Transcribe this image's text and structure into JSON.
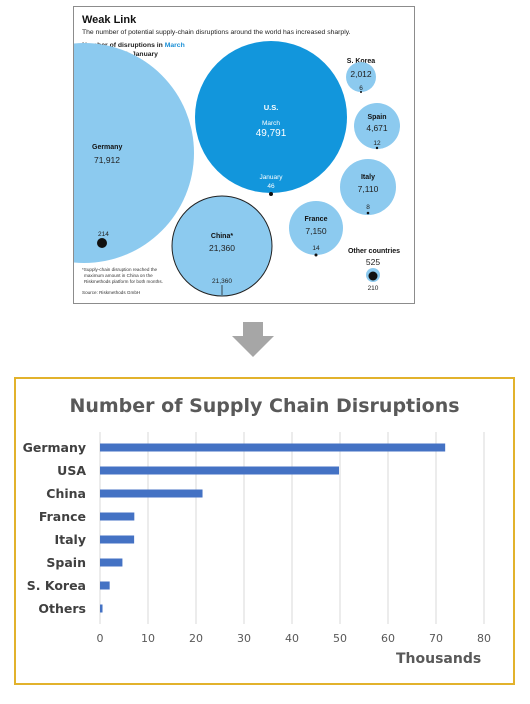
{
  "source_graphic": {
    "title": "Weak Link",
    "subtitle": "The number of potential supply-chain disruptions around the world has increased sharply.",
    "header_line1_prefix": "Number of disruptions in ",
    "header_line1_highlight": "March",
    "header_line2": "compared with January",
    "footnote_line1": "*Supply-chain disruption reached the",
    "footnote_line2": "maximum amount in China on the",
    "footnote_line3": "Riskmethods platform for both months.",
    "source": "Source: Riskmethods GmbH",
    "bubbles": [
      {
        "country": "Germany",
        "march": "71,912",
        "january": "214"
      },
      {
        "country": "U.S.",
        "march_label": "March",
        "march": "49,791",
        "january_label": "January",
        "january": "46"
      },
      {
        "country": "China*",
        "march": "21,360",
        "january": "21,360"
      },
      {
        "country": "France",
        "march": "7,150",
        "january": "14"
      },
      {
        "country": "Italy",
        "march": "7,110",
        "january": "8"
      },
      {
        "country": "Spain",
        "march": "4,671",
        "january": "12"
      },
      {
        "country": "S. Korea",
        "march": "2,012",
        "january": "6"
      },
      {
        "country": "Other countries",
        "march": "525",
        "january": "210"
      }
    ],
    "colors": {
      "light_blue": "#8ccaef",
      "dark_blue": "#1296dc",
      "marker": "#111111"
    }
  },
  "chart_data": {
    "type": "bar",
    "orientation": "horizontal",
    "title": "Number of Supply Chain Disruptions",
    "categories": [
      "Germany",
      "USA",
      "China",
      "France",
      "Italy",
      "Spain",
      "S. Korea",
      "Others"
    ],
    "values": [
      71.912,
      49.791,
      21.36,
      7.15,
      7.11,
      4.671,
      2.012,
      0.525
    ],
    "xlim": [
      0,
      80
    ],
    "xticks": [
      "0",
      "10",
      "20",
      "30",
      "40",
      "50",
      "60",
      "70",
      "80"
    ],
    "xlabel": "Thousands",
    "grid": true,
    "bar_color": "#4472c4"
  },
  "colors": {
    "panel_border": "#e2b22c",
    "arrow": "#a6a6a6",
    "gridline": "#d9d9d9"
  }
}
